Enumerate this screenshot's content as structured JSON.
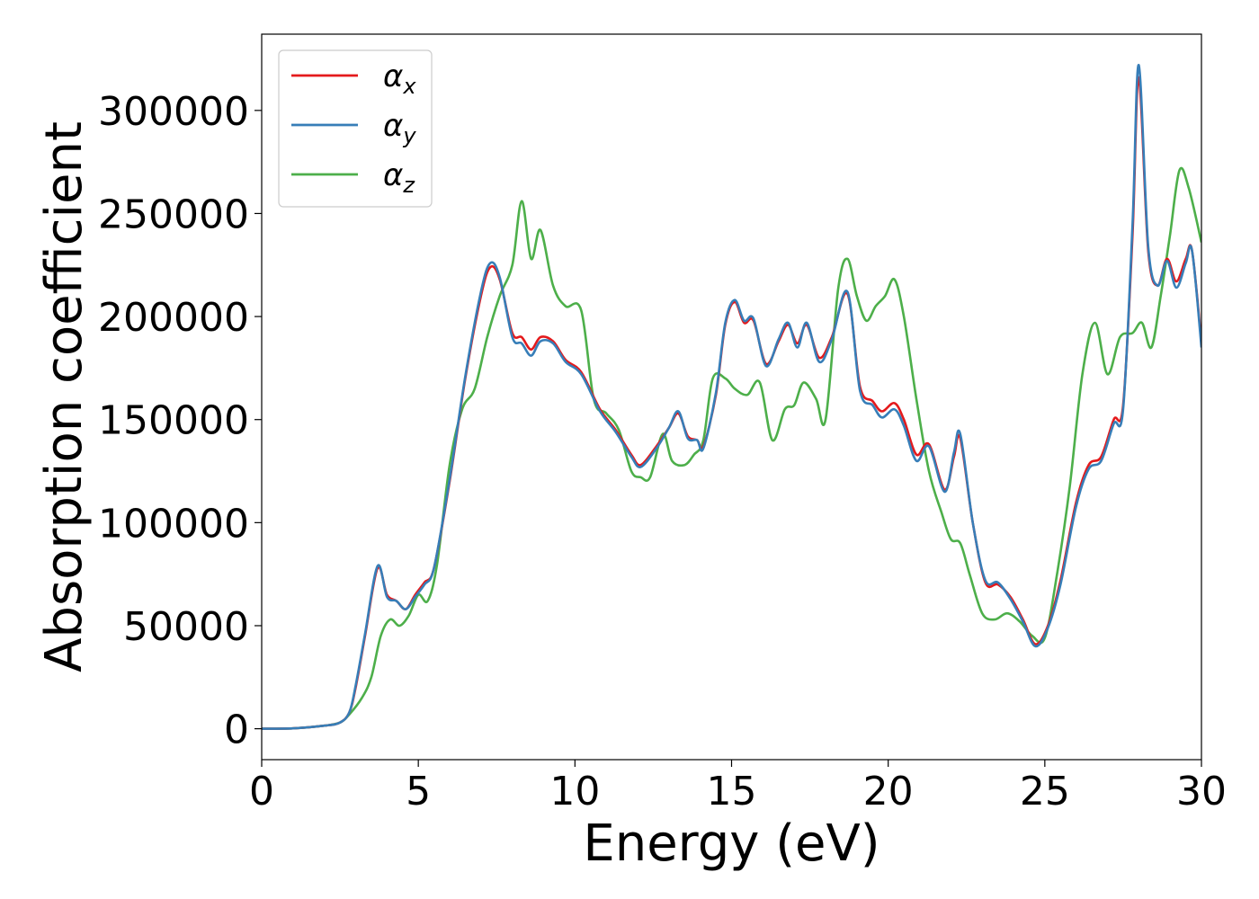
{
  "chart_data": {
    "type": "line",
    "title": "",
    "xlabel": "Energy (eV)",
    "ylabel": "Absorption coefficient",
    "xlim": [
      0,
      30
    ],
    "ylim": [
      -15000,
      337000
    ],
    "xticks": [
      0,
      5,
      10,
      15,
      20,
      25,
      30
    ],
    "xtick_labels": [
      "0",
      "5",
      "10",
      "15",
      "20",
      "25",
      "30"
    ],
    "yticks": [
      0,
      50000,
      100000,
      150000,
      200000,
      250000,
      300000
    ],
    "ytick_labels": [
      "0",
      "50000",
      "100000",
      "150000",
      "200000",
      "250000",
      "300000"
    ],
    "grid": false,
    "legend_position": "top-left",
    "series": [
      {
        "name": "αx",
        "legend_base": "α",
        "legend_sub": "x",
        "color": "#e41a1c",
        "x": [
          0,
          1,
          2,
          2.5,
          2.8,
          3.0,
          3.3,
          3.7,
          4.0,
          4.3,
          4.6,
          4.9,
          5.2,
          5.5,
          6.0,
          6.5,
          7.0,
          7.3,
          7.6,
          8.0,
          8.3,
          8.6,
          8.9,
          9.3,
          9.7,
          10.2,
          10.8,
          11.3,
          11.8,
          12.1,
          12.6,
          13.0,
          13.3,
          13.6,
          13.9,
          14.1,
          14.5,
          14.8,
          15.1,
          15.4,
          15.7,
          16.1,
          16.5,
          16.8,
          17.1,
          17.4,
          17.8,
          18.2,
          18.7,
          19.1,
          19.5,
          19.8,
          20.2,
          20.5,
          20.9,
          21.3,
          21.8,
          22.1,
          22.3,
          22.7,
          23.1,
          23.5,
          23.9,
          24.3,
          24.7,
          25.1,
          25.5,
          26.0,
          26.4,
          26.8,
          27.2,
          27.5,
          27.8,
          28.0,
          28.3,
          28.6,
          28.9,
          29.2,
          29.5,
          29.7,
          30.0
        ],
        "y": [
          0,
          200,
          1500,
          3000,
          8000,
          20000,
          45000,
          78000,
          65000,
          62000,
          58000,
          65000,
          71000,
          78000,
          120000,
          170000,
          210000,
          224000,
          218000,
          192000,
          190000,
          184000,
          190000,
          188000,
          179000,
          173000,
          155000,
          145000,
          133000,
          128000,
          137000,
          146000,
          153000,
          142000,
          140000,
          137000,
          162000,
          196000,
          207000,
          197000,
          198000,
          177000,
          188000,
          196000,
          187000,
          196000,
          180000,
          190000,
          211000,
          166000,
          159000,
          154000,
          158000,
          150000,
          133000,
          138000,
          116000,
          132000,
          141000,
          100000,
          71000,
          70000,
          64000,
          53000,
          41000,
          50000,
          72000,
          110000,
          128000,
          132000,
          150000,
          157000,
          240000,
          316000,
          232000,
          215000,
          228000,
          217000,
          228000,
          232000,
          187000
        ]
      },
      {
        "name": "αy",
        "legend_base": "α",
        "legend_sub": "y",
        "color": "#377eb8",
        "x": [
          0,
          1,
          2,
          2.5,
          2.8,
          3.0,
          3.3,
          3.7,
          4.0,
          4.3,
          4.6,
          4.9,
          5.2,
          5.5,
          6.0,
          6.5,
          7.0,
          7.3,
          7.6,
          8.0,
          8.3,
          8.6,
          8.9,
          9.3,
          9.7,
          10.2,
          10.8,
          11.3,
          11.8,
          12.1,
          12.6,
          13.0,
          13.3,
          13.6,
          13.9,
          14.1,
          14.5,
          14.8,
          15.1,
          15.4,
          15.7,
          16.1,
          16.5,
          16.8,
          17.1,
          17.4,
          17.8,
          18.2,
          18.7,
          19.1,
          19.5,
          19.8,
          20.2,
          20.5,
          20.9,
          21.3,
          21.8,
          22.1,
          22.3,
          22.7,
          23.1,
          23.5,
          23.9,
          24.3,
          24.7,
          25.1,
          25.5,
          26.0,
          26.4,
          26.8,
          27.2,
          27.5,
          27.8,
          28.0,
          28.3,
          28.6,
          28.9,
          29.2,
          29.5,
          29.7,
          30.0
        ],
        "y": [
          0,
          200,
          1500,
          3000,
          8000,
          21000,
          46000,
          79000,
          64000,
          62000,
          58000,
          64000,
          70000,
          78000,
          121000,
          171000,
          212000,
          226000,
          219000,
          190000,
          187000,
          181000,
          188000,
          187000,
          178000,
          172000,
          154000,
          144000,
          132000,
          127000,
          136000,
          146000,
          154000,
          141000,
          140000,
          136000,
          163000,
          197000,
          208000,
          198000,
          199000,
          176000,
          189000,
          197000,
          185000,
          197000,
          178000,
          189000,
          212000,
          164000,
          157000,
          151000,
          155000,
          147000,
          130000,
          137000,
          115000,
          134000,
          143000,
          100000,
          72000,
          71000,
          63000,
          52000,
          40000,
          49000,
          70000,
          108000,
          126000,
          130000,
          148000,
          155000,
          245000,
          322000,
          234000,
          215000,
          227000,
          214000,
          226000,
          232000,
          185000
        ]
      },
      {
        "name": "αz",
        "legend_base": "α",
        "legend_sub": "z",
        "color": "#4daf4a",
        "x": [
          0,
          1,
          2,
          2.5,
          2.8,
          3.2,
          3.5,
          3.8,
          4.1,
          4.4,
          4.7,
          5.0,
          5.3,
          5.6,
          6.0,
          6.4,
          6.8,
          7.2,
          7.6,
          8.0,
          8.3,
          8.6,
          8.9,
          9.3,
          9.7,
          10.2,
          10.6,
          11.0,
          11.4,
          11.8,
          12.1,
          12.4,
          12.8,
          13.1,
          13.5,
          13.8,
          14.1,
          14.4,
          14.8,
          15.1,
          15.5,
          15.9,
          16.3,
          16.7,
          17.0,
          17.3,
          17.7,
          18.0,
          18.4,
          18.7,
          19.0,
          19.3,
          19.6,
          19.9,
          20.2,
          20.5,
          20.9,
          21.3,
          21.7,
          22.0,
          22.3,
          22.6,
          23.0,
          23.4,
          23.8,
          24.2,
          24.6,
          25.0,
          25.4,
          25.8,
          26.2,
          26.6,
          27.0,
          27.4,
          27.8,
          28.1,
          28.4,
          28.7,
          29.0,
          29.3,
          29.6,
          30.0
        ],
        "y": [
          0,
          200,
          1500,
          3000,
          7000,
          15000,
          25000,
          45000,
          53000,
          50000,
          55000,
          65000,
          62000,
          80000,
          128000,
          155000,
          165000,
          190000,
          210000,
          225000,
          256000,
          228000,
          242000,
          215000,
          205000,
          203000,
          160000,
          153000,
          145000,
          125000,
          122000,
          122000,
          143000,
          130000,
          128000,
          133000,
          140000,
          170000,
          170000,
          165000,
          162000,
          168000,
          140000,
          155000,
          157000,
          168000,
          160000,
          150000,
          213000,
          228000,
          210000,
          198000,
          205000,
          210000,
          218000,
          200000,
          160000,
          125000,
          105000,
          92000,
          90000,
          75000,
          56000,
          53000,
          56000,
          52000,
          45000,
          44000,
          76000,
          118000,
          172000,
          197000,
          172000,
          190000,
          192000,
          197000,
          185000,
          210000,
          240000,
          271000,
          262000,
          236000
        ]
      }
    ]
  }
}
